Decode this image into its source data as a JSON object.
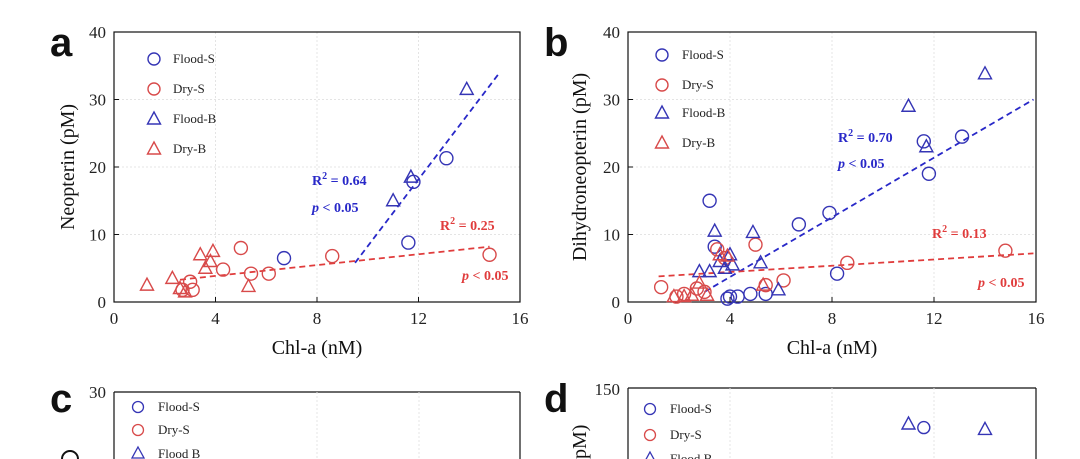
{
  "colors": {
    "flood": "#3535b5",
    "dry": "#d84a4a",
    "fit_flood": "#2828c8",
    "fit_dry": "#e03c3c"
  },
  "chart_data": [
    {
      "panel": "a",
      "type": "scatter",
      "xlabel": "Chl-a  (nM)",
      "ylabel": "Neopterin (pM)",
      "xlim": [
        0,
        16
      ],
      "ylim": [
        0,
        40
      ],
      "xticks": [
        "0",
        "4",
        "8",
        "12",
        "16"
      ],
      "yticks": [
        "0",
        "10",
        "20",
        "30",
        "40"
      ],
      "legend": [
        "Flood-S",
        "Dry-S",
        "Flood-B",
        "Dry-B"
      ],
      "series": [
        {
          "name": "Flood-S",
          "marker": "circle",
          "color": "flood",
          "x": [
            6.7,
            11.6,
            11.8,
            13.1
          ],
          "y": [
            6.5,
            8.8,
            17.8,
            21.3
          ]
        },
        {
          "name": "Dry-S",
          "marker": "circle",
          "color": "dry",
          "x": [
            2.7,
            3.0,
            3.1,
            4.3,
            5.0,
            5.4,
            6.1,
            8.6,
            14.8
          ],
          "y": [
            1.8,
            3.0,
            1.8,
            4.8,
            8.0,
            4.2,
            4.2,
            6.8,
            7.0
          ]
        },
        {
          "name": "Flood-B",
          "marker": "triangle",
          "color": "flood",
          "x": [
            11.0,
            11.7,
            13.9
          ],
          "y": [
            15.0,
            18.5,
            31.5
          ]
        },
        {
          "name": "Dry-B",
          "marker": "triangle",
          "color": "dry",
          "x": [
            1.3,
            2.3,
            2.6,
            2.8,
            3.4,
            3.6,
            3.8,
            3.9,
            5.3
          ],
          "y": [
            2.5,
            3.5,
            2.0,
            1.5,
            7.0,
            5.0,
            6.0,
            7.5,
            2.3
          ]
        }
      ],
      "fits": [
        {
          "series": "Flood",
          "color": "fit_flood",
          "x": [
            9.5,
            15.2
          ],
          "y": [
            5.8,
            34.0
          ],
          "r2": "0.64",
          "p": "< 0.05"
        },
        {
          "series": "Dry",
          "color": "fit_dry",
          "x": [
            2.6,
            14.8
          ],
          "y": [
            3.3,
            8.2
          ],
          "r2": "0.25",
          "p": "< 0.05"
        }
      ]
    },
    {
      "panel": "b",
      "type": "scatter",
      "xlabel": "Chl-a  (nM)",
      "ylabel": "Dihydroneopterin (pM)",
      "xlim": [
        0,
        16
      ],
      "ylim": [
        0,
        40
      ],
      "xticks": [
        "0",
        "4",
        "8",
        "12",
        "16"
      ],
      "yticks": [
        "0",
        "10",
        "20",
        "30",
        "40"
      ],
      "legend": [
        "Flood-S",
        "Dry-S",
        "Flood-B",
        "Dry-B"
      ],
      "series": [
        {
          "name": "Flood-S",
          "marker": "circle",
          "color": "flood",
          "x": [
            3.2,
            3.4,
            3.9,
            4.0,
            4.3,
            4.8,
            5.4,
            6.7,
            7.9,
            8.2,
            11.6,
            11.8,
            13.1
          ],
          "y": [
            15.0,
            8.2,
            0.5,
            0.8,
            0.8,
            1.2,
            1.2,
            11.5,
            13.2,
            4.2,
            23.8,
            19.0,
            24.5
          ]
        },
        {
          "name": "Dry-S",
          "marker": "circle",
          "color": "dry",
          "x": [
            1.3,
            1.9,
            2.2,
            2.7,
            3.0,
            3.5,
            3.8,
            5.0,
            5.4,
            6.1,
            8.6,
            14.8
          ],
          "y": [
            2.2,
            0.8,
            1.2,
            2.0,
            1.5,
            7.8,
            6.5,
            8.5,
            2.5,
            3.2,
            5.8,
            7.6
          ]
        },
        {
          "name": "Flood-B",
          "marker": "triangle",
          "color": "flood",
          "x": [
            2.8,
            3.2,
            3.4,
            3.6,
            3.8,
            4.0,
            4.1,
            4.9,
            5.2,
            5.9,
            11.0,
            11.7,
            14.0
          ],
          "y": [
            4.5,
            4.5,
            10.5,
            6.0,
            5.0,
            7.0,
            5.5,
            10.3,
            5.8,
            1.8,
            29.0,
            23.0,
            33.8
          ]
        },
        {
          "name": "Dry-B",
          "marker": "triangle",
          "color": "dry",
          "x": [
            1.8,
            2.2,
            2.5,
            2.8,
            3.1,
            3.6,
            3.9,
            5.3
          ],
          "y": [
            0.8,
            0.8,
            1.0,
            2.8,
            1.0,
            7.0,
            6.8,
            2.5
          ]
        }
      ],
      "fits": [
        {
          "series": "Flood",
          "color": "fit_flood",
          "x": [
            3.0,
            15.9
          ],
          "y": [
            1.5,
            30.0
          ],
          "r2": "0.70",
          "p": "< 0.05"
        },
        {
          "series": "Dry",
          "color": "fit_dry",
          "x": [
            1.2,
            15.9
          ],
          "y": [
            3.8,
            7.2
          ],
          "r2": "0.13",
          "p": "< 0.05"
        }
      ]
    },
    {
      "panel": "c",
      "type": "scatter",
      "ylim": [
        0,
        30
      ],
      "yticks": [
        "30"
      ],
      "legend": [
        "Flood-S",
        "Dry-S",
        "Flood  B"
      ],
      "series": []
    },
    {
      "panel": "d",
      "type": "scatter",
      "ylabel_fragment": "pM)",
      "ylim": [
        0,
        150
      ],
      "yticks": [
        "150"
      ],
      "legend": [
        "Flood-S",
        "Dry-S",
        "Flood  B"
      ],
      "series": [
        {
          "name": "Flood-B",
          "marker": "triangle",
          "color": "flood",
          "x": [
            11.0,
            14.0
          ],
          "y": [
            130,
            127
          ]
        },
        {
          "name": "Flood-S",
          "marker": "circle",
          "color": "flood",
          "x": [
            11.6
          ],
          "y": [
            128
          ]
        }
      ]
    }
  ]
}
